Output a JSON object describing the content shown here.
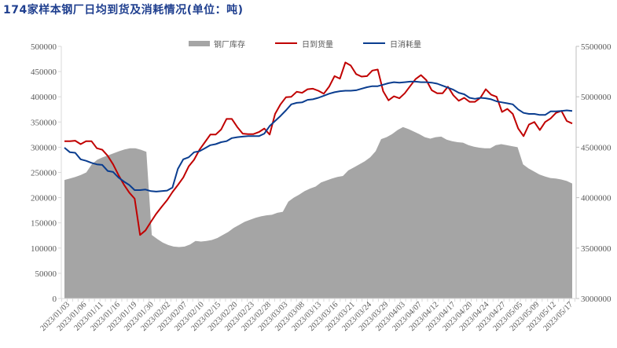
{
  "title": "174家样本钢厂日均到货及消耗情况(单位：吨)",
  "legend": [
    {
      "label": "钢厂库存",
      "type": "area",
      "color": "#a5a5a5"
    },
    {
      "label": "日到货量",
      "type": "line",
      "color": "#c00000"
    },
    {
      "label": "日消耗量",
      "type": "line",
      "color": "#0a3d8f"
    }
  ],
  "chart_data": {
    "type": "line",
    "title": "174家样本钢厂日均到货及消耗情况(单位：吨)",
    "xlabel": "",
    "ylabel": "",
    "y_left_ticks": [
      0,
      50000,
      100000,
      150000,
      200000,
      250000,
      300000,
      350000,
      400000,
      450000,
      500000
    ],
    "y_left_range": [
      0,
      500000
    ],
    "y_right_ticks": [
      3000000,
      3500000,
      4000000,
      4500000,
      5000000,
      5500000
    ],
    "y_right_range": [
      3000000,
      5500000
    ],
    "x_tick_labels": [
      "2023/01/03",
      "2023/01/06",
      "2023/01/11",
      "2023/01/16",
      "2023/01/19",
      "2023/01/30",
      "2023/02/02",
      "2023/02/07",
      "2023/02/10",
      "2023/02/15",
      "2023/02/20",
      "2023/02/23",
      "2023/02/28",
      "2023/03/03",
      "2023/03/08",
      "2023/03/13",
      "2023/03/16",
      "2023/03/21",
      "2023/03/24",
      "2023/03/29",
      "2023/04/03",
      "2023/04/07",
      "2023/04/12",
      "2023/04/17",
      "2023/04/20",
      "2023/04/24",
      "2023/04/27",
      "2023/05/05",
      "2023/05/09",
      "2023/05/12",
      "2023/05/17"
    ],
    "legend_position": "top",
    "grid": false,
    "series": [
      {
        "name": "钢厂库存",
        "type": "area",
        "axis": "right",
        "color": "#a5a5a5",
        "values": [
          4175000,
          4190000,
          4205000,
          4225000,
          4250000,
          4330000,
          4375000,
          4400000,
          4420000,
          4440000,
          4460000,
          4478000,
          4490000,
          4490000,
          4475000,
          4455000,
          3630000,
          3590000,
          3555000,
          3530000,
          3515000,
          3510000,
          3515000,
          3535000,
          3570000,
          3565000,
          3570000,
          3580000,
          3600000,
          3630000,
          3660000,
          3700000,
          3730000,
          3760000,
          3780000,
          3800000,
          3815000,
          3825000,
          3830000,
          3850000,
          3860000,
          3960000,
          4000000,
          4030000,
          4065000,
          4090000,
          4110000,
          4150000,
          4170000,
          4190000,
          4205000,
          4215000,
          4270000,
          4300000,
          4330000,
          4360000,
          4400000,
          4460000,
          4580000,
          4600000,
          4630000,
          4670000,
          4700000,
          4680000,
          4655000,
          4630000,
          4600000,
          4585000,
          4600000,
          4605000,
          4575000,
          4560000,
          4550000,
          4545000,
          4520000,
          4505000,
          4495000,
          4490000,
          4490000,
          4520000,
          4530000,
          4520000,
          4510000,
          4500000,
          4330000,
          4290000,
          4260000,
          4230000,
          4210000,
          4195000,
          4190000,
          4180000,
          4165000,
          4140000
        ]
      },
      {
        "name": "日到货量",
        "type": "line",
        "axis": "left",
        "color": "#c00000",
        "values": [
          312000,
          312000,
          313000,
          306000,
          312000,
          312000,
          298000,
          295000,
          283000,
          266000,
          245000,
          226000,
          210000,
          198000,
          126000,
          135000,
          152000,
          168000,
          182000,
          195000,
          211000,
          225000,
          240000,
          262000,
          275000,
          295000,
          310000,
          325000,
          325000,
          335000,
          356000,
          356000,
          340000,
          327000,
          326000,
          326000,
          330000,
          337000,
          325000,
          366000,
          385000,
          399000,
          400000,
          410000,
          408000,
          415000,
          416000,
          412000,
          406000,
          420000,
          441000,
          436000,
          468000,
          462000,
          445000,
          440000,
          441000,
          452000,
          454000,
          411000,
          393000,
          401000,
          397000,
          407000,
          421000,
          435000,
          443000,
          433000,
          413000,
          407000,
          407000,
          420000,
          403000,
          392000,
          398000,
          390000,
          390000,
          398000,
          415000,
          404000,
          400000,
          370000,
          376000,
          366000,
          337000,
          322000,
          345000,
          350000,
          334000,
          350000,
          357000,
          368000,
          372000,
          352000,
          347000
        ]
      },
      {
        "name": "日消耗量",
        "type": "line",
        "axis": "left",
        "color": "#0a3d8f",
        "values": [
          299000,
          290000,
          289000,
          276000,
          273000,
          269000,
          266000,
          265000,
          253000,
          251000,
          240000,
          232000,
          225000,
          215000,
          215000,
          216000,
          213000,
          212000,
          213000,
          214000,
          220000,
          257000,
          276000,
          280000,
          290000,
          292000,
          298000,
          304000,
          306000,
          310000,
          312000,
          318000,
          320000,
          321000,
          322000,
          322000,
          322000,
          327000,
          342000,
          352000,
          362000,
          373000,
          385000,
          388000,
          389000,
          394000,
          395000,
          398000,
          402000,
          406000,
          409000,
          411000,
          412000,
          412000,
          413000,
          416000,
          419000,
          421000,
          421000,
          424000,
          427000,
          429000,
          428000,
          429000,
          430000,
          430000,
          429000,
          429000,
          428000,
          426000,
          422000,
          418000,
          414000,
          408000,
          405000,
          398000,
          396000,
          398000,
          397000,
          395000,
          391000,
          389000,
          387000,
          385000,
          375000,
          368000,
          366000,
          366000,
          364000,
          364000,
          371000,
          371000,
          372000,
          373000,
          372000
        ]
      }
    ]
  },
  "axes": {
    "left_ticks": [
      "0",
      "50000",
      "100000",
      "150000",
      "200000",
      "250000",
      "300000",
      "350000",
      "400000",
      "450000",
      "500000"
    ],
    "right_ticks": [
      "3000000",
      "3500000",
      "4000000",
      "4500000",
      "5000000",
      "5500000"
    ]
  }
}
